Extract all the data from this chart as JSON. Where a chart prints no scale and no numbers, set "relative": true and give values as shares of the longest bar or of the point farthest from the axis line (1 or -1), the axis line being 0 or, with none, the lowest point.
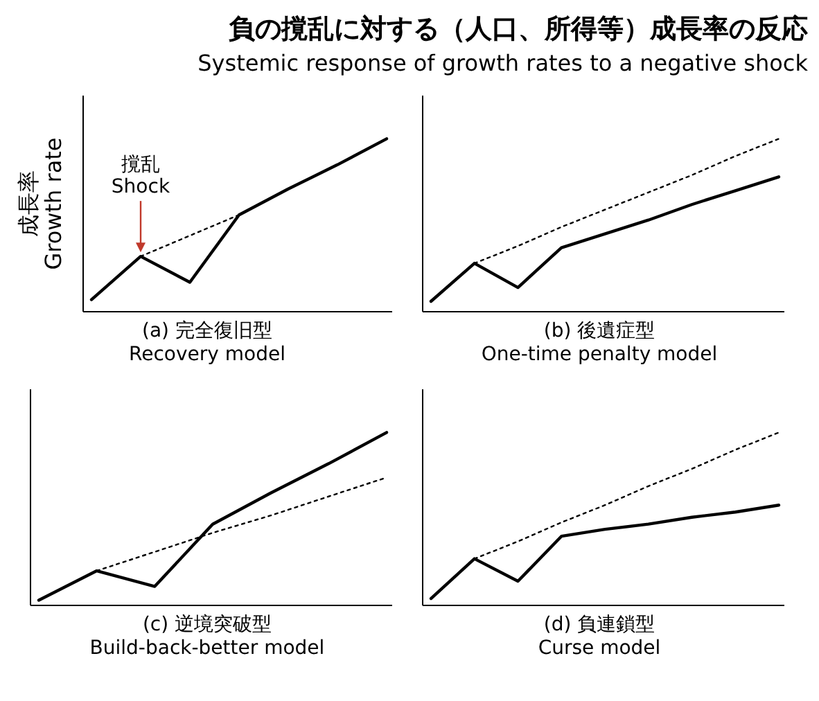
{
  "chart_data": [
    {
      "type": "line",
      "title": "負の撹乱に対する（人口、所得等）成長率の反応",
      "subtitle": "Systemic response of growth rates to a negative shock",
      "xlabel": "(a) 完全復旧型\nRecovery model",
      "ylabel": "成長率\nGrowth rate",
      "relative": true,
      "legend": false,
      "categories": [
        null,
        null,
        null,
        null,
        null,
        null,
        null
      ],
      "series": [
        {
          "color": "#000000",
          "values": [
            0.07,
            0.32,
            0.17,
            0.56,
            0.71,
            0.85,
            1
          ],
          "line_style": "solid"
        },
        {
          "color": "#000000",
          "values": [
            null,
            0.32,
            0.44,
            0.56,
            null,
            null,
            null
          ],
          "line_style": "dotted"
        }
      ],
      "annotations": [
        "撹乱\nShock"
      ]
    },
    {
      "type": "line",
      "xlabel": "(b) 後遺症型\nOne-time penalty model",
      "relative": true,
      "legend": false,
      "categories": [
        null,
        null,
        null,
        null,
        null,
        null,
        null,
        null,
        null
      ],
      "series": [
        {
          "color": "#000000",
          "values": [
            0.06,
            0.28,
            0.14,
            0.37,
            0.45,
            0.53,
            0.62,
            0.7,
            0.78
          ],
          "line_style": "solid"
        },
        {
          "color": "#000000",
          "values": [
            null,
            0.28,
            0.38,
            0.49,
            0.59,
            0.69,
            0.79,
            0.9,
            1
          ],
          "line_style": "dotted"
        }
      ]
    },
    {
      "type": "line",
      "xlabel": "(c) 逆境突破型\nBuild-back-better model",
      "relative": true,
      "legend": false,
      "categories": [
        null,
        null,
        null,
        null,
        null,
        null,
        null
      ],
      "series": [
        {
          "color": "#000000",
          "values": [
            0.03,
            0.2,
            0.11,
            0.47,
            0.65,
            0.82,
            1
          ],
          "line_style": "solid"
        },
        {
          "color": "#000000",
          "values": [
            null,
            0.2,
            0.31,
            0.42,
            0.52,
            0.63,
            0.74
          ],
          "line_style": "dotted"
        }
      ]
    },
    {
      "type": "line",
      "xlabel": "(d) 負連鎖型\nCurse model",
      "relative": true,
      "legend": false,
      "categories": [
        null,
        null,
        null,
        null,
        null,
        null,
        null,
        null,
        null
      ],
      "series": [
        {
          "color": "#000000",
          "values": [
            0.04,
            0.27,
            0.14,
            0.4,
            0.44,
            0.47,
            0.51,
            0.54,
            0.58
          ],
          "line_style": "solid"
        },
        {
          "color": "#000000",
          "values": [
            null,
            0.27,
            0.37,
            0.48,
            0.58,
            0.69,
            0.79,
            0.9,
            1
          ],
          "line_style": "dotted"
        }
      ]
    }
  ]
}
